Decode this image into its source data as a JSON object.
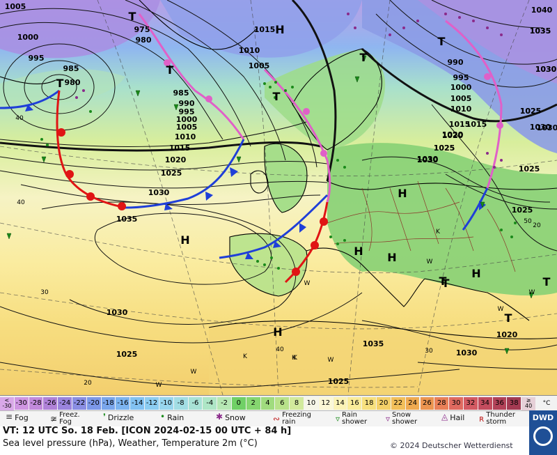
{
  "map": {
    "pressure_labels": [
      "1005",
      "1000",
      "995",
      "985",
      "980",
      "975",
      "980",
      "985",
      "990",
      "995",
      "1000",
      "1005",
      "1010",
      "1015",
      "1020",
      "1025",
      "1030",
      "1035",
      "1030",
      "1025",
      "1015",
      "1010",
      "1005",
      "1015",
      "1020",
      "1025",
      "1030",
      "1040",
      "1035",
      "1030",
      "1025",
      "1030",
      "1035",
      "1025",
      "1030",
      "1020",
      "1025",
      "1025",
      "1030",
      "990",
      "995",
      "1000",
      "1005",
      "1010",
      "1015",
      "1020",
      "1030",
      "1035",
      "1030",
      "1025",
      "1020",
      "1025",
      "1030"
    ],
    "lat_labels": [
      "40",
      "30",
      "20",
      "40",
      "30",
      "20",
      "40",
      "50"
    ],
    "centers": [
      {
        "type": "T"
      },
      {
        "type": "T"
      },
      {
        "type": "T"
      },
      {
        "type": "T"
      },
      {
        "type": "T"
      },
      {
        "type": "T"
      },
      {
        "type": "T"
      },
      {
        "type": "T"
      },
      {
        "type": "T"
      },
      {
        "type": "T"
      },
      {
        "type": "H"
      },
      {
        "type": "H"
      },
      {
        "type": "H"
      },
      {
        "type": "H"
      },
      {
        "type": "H"
      },
      {
        "type": "H"
      },
      {
        "type": "H"
      }
    ],
    "wind_labels": [
      "W",
      "K",
      "W",
      "W",
      "K",
      "W",
      "W",
      "K",
      "W",
      "K",
      "W"
    ]
  },
  "scale": {
    "cells": [
      {
        "label": "<\n-30",
        "color": "#d9a8e8"
      },
      {
        "label": "-30",
        "color": "#cf96e2"
      },
      {
        "label": "-28",
        "color": "#c28adc"
      },
      {
        "label": "-26",
        "color": "#b082d8"
      },
      {
        "label": "-24",
        "color": "#9a84dd"
      },
      {
        "label": "-22",
        "color": "#8a8ee3"
      },
      {
        "label": "-20",
        "color": "#7c98e8"
      },
      {
        "label": "-18",
        "color": "#7aa6ec"
      },
      {
        "label": "-16",
        "color": "#7cb4f0"
      },
      {
        "label": "-14",
        "color": "#82c2f2"
      },
      {
        "label": "-12",
        "color": "#8ccdf2"
      },
      {
        "label": "-10",
        "color": "#98d6ee"
      },
      {
        "label": "-8",
        "color": "#a2dde4"
      },
      {
        "label": "-6",
        "color": "#a8e2d6"
      },
      {
        "label": "-4",
        "color": "#aee6c6"
      },
      {
        "label": "-2",
        "color": "#b6e8b4"
      },
      {
        "label": "0",
        "color": "#70d066"
      },
      {
        "label": "2",
        "color": "#86d670"
      },
      {
        "label": "4",
        "color": "#a0dc7e"
      },
      {
        "label": "6",
        "color": "#b8e28a"
      },
      {
        "label": "8",
        "color": "#d2ea9c"
      },
      {
        "label": "10",
        "color": "#f6f6e8"
      },
      {
        "label": "12",
        "color": "#fbf8d6"
      },
      {
        "label": "14",
        "color": "#fbf3b6"
      },
      {
        "label": "16",
        "color": "#faec9a"
      },
      {
        "label": "18",
        "color": "#f7e07e"
      },
      {
        "label": "20",
        "color": "#f4d068"
      },
      {
        "label": "22",
        "color": "#f2bf5a"
      },
      {
        "label": "24",
        "color": "#efaa50"
      },
      {
        "label": "26",
        "color": "#ec9550"
      },
      {
        "label": "28",
        "color": "#e98058"
      },
      {
        "label": "30",
        "color": "#e06a60"
      },
      {
        "label": "32",
        "color": "#d35a62"
      },
      {
        "label": "34",
        "color": "#c34c5e"
      },
      {
        "label": "36",
        "color": "#b24258"
      },
      {
        "label": "38",
        "color": "#a33a52"
      },
      {
        "label": "≥\n40",
        "color": "#e6d0d8"
      }
    ],
    "unit": "°C"
  },
  "legend": {
    "items": [
      {
        "label": "Fog",
        "icon": "fog-icon",
        "glyph": "≡"
      },
      {
        "label": "Freez.\nFog",
        "icon": "freezing-fog-icon",
        "glyph": "≆"
      },
      {
        "label": "Drizzle",
        "icon": "drizzle-icon",
        "glyph": "❜"
      },
      {
        "label": "Rain",
        "icon": "rain-icon",
        "glyph": "•"
      },
      {
        "label": "Snow",
        "icon": "snow-icon",
        "glyph": "✱"
      },
      {
        "label": "Freezing\nrain",
        "icon": "freezing-rain-icon",
        "glyph": "∾"
      },
      {
        "label": "Rain\nshower",
        "icon": "rain-shower-icon",
        "glyph": "▿"
      },
      {
        "label": "Snow\nshower",
        "icon": "snow-shower-icon",
        "glyph": "▿"
      },
      {
        "label": "Hail",
        "icon": "hail-icon",
        "glyph": "◬"
      },
      {
        "label": "Thunder\nstorm",
        "icon": "thunderstorm-icon",
        "glyph": "ʀ"
      }
    ]
  },
  "info": {
    "valid_time": "VT: 12 UTC So.   18 Feb. [ICON 2024-02-15  00 UTC + 84 h]",
    "subtitle": "Sea level pressure (hPa), Weather, Temperature 2m (°C)",
    "copyright": "© 2024 Deutscher Wetterdienst",
    "logo": "DWD"
  },
  "colors": {
    "cold_front": "#1f3fd8",
    "warm_front": "#e01414",
    "occlusion": "#e060c8",
    "isobar": "#111111",
    "coast": "#000000",
    "border": "#8a1a1a",
    "sea_warm": "#fbf1b8",
    "land_green": "#86d074"
  }
}
